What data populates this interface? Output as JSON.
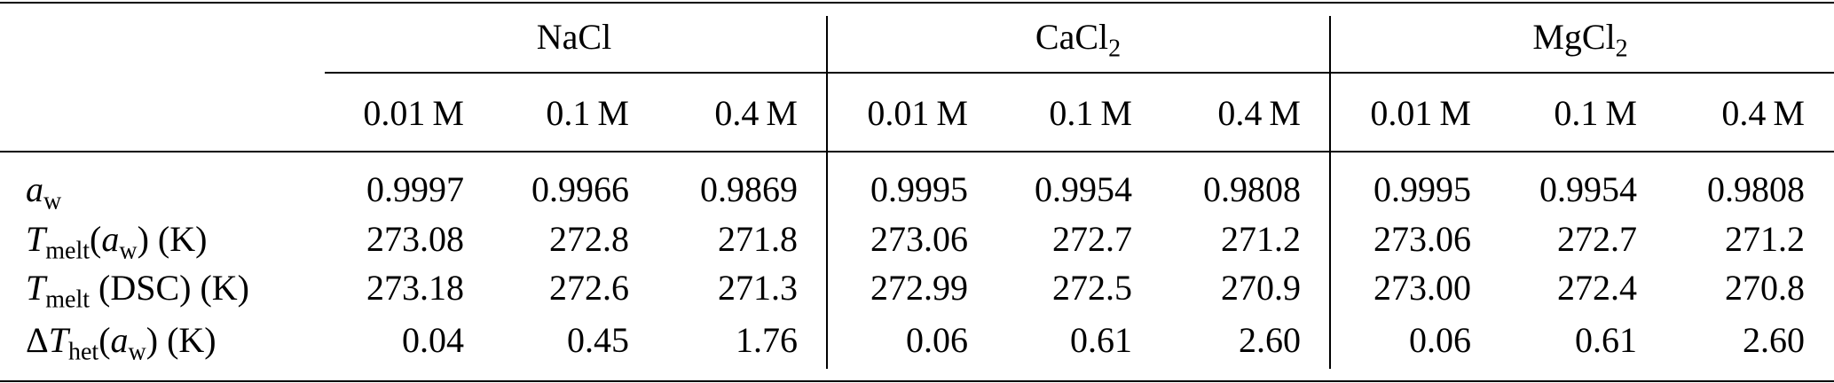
{
  "table": {
    "groups": [
      {
        "name": [
          "NaCl"
        ],
        "columns": [
          "0.01 M",
          "0.1 M",
          "0.4 M"
        ]
      },
      {
        "name": [
          "CaCl",
          "2"
        ],
        "columns": [
          "0.01 M",
          "0.1 M",
          "0.4 M"
        ]
      },
      {
        "name": [
          "MgCl",
          "2"
        ],
        "columns": [
          "0.01 M",
          "0.1 M",
          "0.4 M"
        ]
      }
    ],
    "rows": [
      {
        "label": [
          "a",
          "w"
        ],
        "cells": [
          "0.9997",
          "0.9966",
          "0.9869",
          "0.9995",
          "0.9954",
          "0.9808",
          "0.9995",
          "0.9954",
          "0.9808"
        ]
      },
      {
        "label": [
          "T",
          "melt",
          "(",
          "a",
          "w",
          ") (K)"
        ],
        "cells": [
          "273.08",
          "272.8",
          "271.8",
          "273.06",
          "272.7",
          "271.2",
          "273.06",
          "272.7",
          "271.2"
        ]
      },
      {
        "label": [
          "T",
          "melt",
          " (DSC) (K)"
        ],
        "cells": [
          "273.18",
          "272.6",
          "271.3",
          "272.99",
          "272.5",
          "270.9",
          "273.00",
          "272.4",
          "270.8"
        ]
      },
      {
        "label": [
          "Δ",
          "T",
          "het",
          "(",
          "a",
          "w",
          ") (K)"
        ],
        "cells": [
          "0.04",
          "0.45",
          "1.76",
          "0.06",
          "0.61",
          "2.60",
          "0.06",
          "0.61",
          "2.60"
        ]
      }
    ]
  }
}
